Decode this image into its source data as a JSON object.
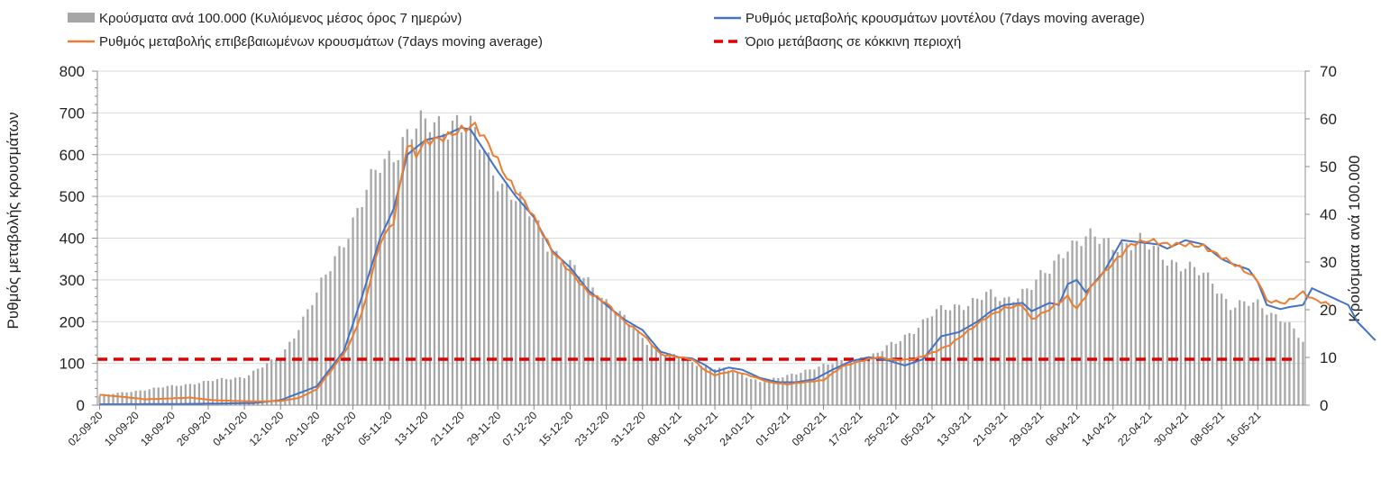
{
  "chart_data": {
    "type": "bar+line",
    "legend": [
      {
        "label": "Κρούσματα ανά 100.000 (Κυλιόμενος μέσος όρος 7 ημερών)",
        "kind": "bar",
        "color": "#a6a6a6"
      },
      {
        "label": "Ρυθμός μεταβολής κρουσμάτων μοντέλου (7days moving average)",
        "kind": "line",
        "color": "#4472c4"
      },
      {
        "label": "Ρυθμός μεταβολής επιβεβαιωμένων κρουσμάτων (7days moving average)",
        "kind": "line",
        "color": "#ed7d31"
      },
      {
        "label": "Όριο μετάβασης σε κόκκινη περιοχή",
        "kind": "dashed",
        "color": "#e00000"
      }
    ],
    "ylabel_left": "Ρυθμός μεταβολής κρουσμάτων",
    "ylabel_right": "Κρούσματα ανά 100.000",
    "ylim_left": [
      0,
      800
    ],
    "ylim_right": [
      0,
      70
    ],
    "yticks_left": [
      "0",
      "100",
      "200",
      "300",
      "400",
      "500",
      "600",
      "700",
      "800"
    ],
    "yticks_right": [
      "0",
      "10",
      "20",
      "30",
      "40",
      "50",
      "60",
      "70"
    ],
    "x_start_date": "2020-09-02",
    "num_days": 267,
    "x_tick_labels": [
      "02-09-20",
      "10-09-20",
      "18-09-20",
      "26-09-20",
      "04-10-20",
      "12-10-20",
      "20-10-20",
      "28-10-20",
      "05-11-20",
      "13-11-20",
      "21-11-20",
      "29-11-20",
      "07-12-20",
      "15-12-20",
      "23-12-20",
      "31-12-20",
      "08-01-21",
      "16-01-21",
      "24-01-21",
      "01-02-21",
      "09-02-21",
      "17-02-21",
      "25-02-21",
      "05-03-21",
      "13-03-21",
      "21-03-21",
      "29-03-21",
      "06-04-21",
      "14-04-21",
      "22-04-21",
      "30-04-21",
      "08-05-21",
      "16-05-21"
    ],
    "threshold": 110,
    "bars_keypoints": [
      [
        0,
        2
      ],
      [
        8,
        3
      ],
      [
        16,
        4
      ],
      [
        24,
        5
      ],
      [
        32,
        6
      ],
      [
        40,
        10
      ],
      [
        48,
        23
      ],
      [
        54,
        35
      ],
      [
        62,
        50
      ],
      [
        68,
        57
      ],
      [
        75,
        59
      ],
      [
        79,
        60
      ],
      [
        83,
        56
      ],
      [
        88,
        48
      ],
      [
        95,
        40
      ],
      [
        100,
        33
      ],
      [
        105,
        28
      ],
      [
        110,
        24
      ],
      [
        116,
        18
      ],
      [
        120,
        14
      ],
      [
        125,
        11
      ],
      [
        130,
        9
      ],
      [
        136,
        8
      ],
      [
        140,
        7
      ],
      [
        146,
        5
      ],
      [
        152,
        6
      ],
      [
        158,
        8
      ],
      [
        164,
        9
      ],
      [
        170,
        10
      ],
      [
        176,
        13
      ],
      [
        184,
        19
      ],
      [
        190,
        21
      ],
      [
        196,
        23
      ],
      [
        200,
        22
      ],
      [
        206,
        25
      ],
      [
        210,
        28
      ],
      [
        214,
        34
      ],
      [
        218,
        35
      ],
      [
        222,
        34
      ],
      [
        226,
        34
      ],
      [
        230,
        34
      ],
      [
        236,
        31
      ],
      [
        242,
        28
      ],
      [
        246,
        26
      ],
      [
        250,
        21
      ],
      [
        256,
        21
      ],
      [
        262,
        18
      ],
      [
        266,
        13
      ]
    ],
    "model_rate_keypoints": [
      [
        0,
        2
      ],
      [
        20,
        3
      ],
      [
        34,
        5
      ],
      [
        40,
        12
      ],
      [
        48,
        45
      ],
      [
        54,
        130
      ],
      [
        58,
        260
      ],
      [
        62,
        400
      ],
      [
        65,
        470
      ],
      [
        68,
        600
      ],
      [
        72,
        635
      ],
      [
        76,
        645
      ],
      [
        80,
        665
      ],
      [
        82,
        660
      ],
      [
        85,
        610
      ],
      [
        88,
        560
      ],
      [
        92,
        500
      ],
      [
        96,
        450
      ],
      [
        100,
        370
      ],
      [
        104,
        330
      ],
      [
        108,
        275
      ],
      [
        112,
        240
      ],
      [
        116,
        205
      ],
      [
        120,
        180
      ],
      [
        124,
        128
      ],
      [
        128,
        115
      ],
      [
        131,
        112
      ],
      [
        134,
        95
      ],
      [
        136,
        80
      ],
      [
        139,
        90
      ],
      [
        142,
        85
      ],
      [
        146,
        65
      ],
      [
        150,
        55
      ],
      [
        154,
        55
      ],
      [
        158,
        62
      ],
      [
        162,
        85
      ],
      [
        166,
        105
      ],
      [
        170,
        115
      ],
      [
        174,
        108
      ],
      [
        178,
        95
      ],
      [
        182,
        110
      ],
      [
        186,
        165
      ],
      [
        190,
        175
      ],
      [
        194,
        200
      ],
      [
        197,
        225
      ],
      [
        200,
        240
      ],
      [
        204,
        245
      ],
      [
        206,
        225
      ],
      [
        210,
        245
      ],
      [
        212,
        240
      ],
      [
        214,
        290
      ],
      [
        216,
        300
      ],
      [
        218,
        270
      ],
      [
        222,
        320
      ],
      [
        226,
        395
      ],
      [
        230,
        390
      ],
      [
        234,
        385
      ],
      [
        236,
        375
      ],
      [
        240,
        395
      ],
      [
        244,
        385
      ],
      [
        248,
        350
      ],
      [
        250,
        340
      ],
      [
        254,
        325
      ],
      [
        256,
        295
      ],
      [
        258,
        240
      ],
      [
        261,
        230
      ],
      [
        263,
        235
      ],
      [
        266,
        240
      ],
      [
        268,
        280
      ],
      [
        272,
        260
      ],
      [
        276,
        240
      ],
      [
        278,
        200
      ],
      [
        282,
        155
      ]
    ],
    "confirmed_rate_keypoints": [
      [
        0,
        25
      ],
      [
        5,
        20
      ],
      [
        10,
        14
      ],
      [
        15,
        16
      ],
      [
        20,
        18
      ],
      [
        25,
        12
      ],
      [
        30,
        10
      ],
      [
        35,
        9
      ],
      [
        40,
        10
      ],
      [
        44,
        17
      ],
      [
        48,
        38
      ],
      [
        52,
        95
      ],
      [
        55,
        140
      ],
      [
        58,
        220
      ],
      [
        62,
        390
      ],
      [
        65,
        440
      ],
      [
        68,
        625
      ],
      [
        70,
        600
      ],
      [
        72,
        630
      ],
      [
        76,
        640
      ],
      [
        80,
        660
      ],
      [
        83,
        670
      ],
      [
        86,
        625
      ],
      [
        90,
        545
      ],
      [
        95,
        470
      ],
      [
        100,
        370
      ],
      [
        104,
        320
      ],
      [
        108,
        270
      ],
      [
        112,
        245
      ],
      [
        116,
        200
      ],
      [
        120,
        170
      ],
      [
        124,
        122
      ],
      [
        128,
        115
      ],
      [
        131,
        110
      ],
      [
        134,
        82
      ],
      [
        136,
        72
      ],
      [
        140,
        82
      ],
      [
        144,
        70
      ],
      [
        148,
        55
      ],
      [
        152,
        50
      ],
      [
        156,
        55
      ],
      [
        160,
        60
      ],
      [
        164,
        92
      ],
      [
        168,
        105
      ],
      [
        172,
        115
      ],
      [
        176,
        108
      ],
      [
        180,
        110
      ],
      [
        184,
        125
      ],
      [
        188,
        145
      ],
      [
        192,
        178
      ],
      [
        196,
        210
      ],
      [
        200,
        232
      ],
      [
        204,
        240
      ],
      [
        206,
        205
      ],
      [
        210,
        230
      ],
      [
        212,
        245
      ],
      [
        214,
        260
      ],
      [
        216,
        230
      ],
      [
        220,
        295
      ],
      [
        224,
        340
      ],
      [
        228,
        385
      ],
      [
        232,
        395
      ],
      [
        236,
        385
      ],
      [
        240,
        385
      ],
      [
        244,
        380
      ],
      [
        248,
        355
      ],
      [
        252,
        330
      ],
      [
        256,
        300
      ],
      [
        258,
        250
      ],
      [
        262,
        245
      ],
      [
        266,
        270
      ],
      [
        268,
        255
      ],
      [
        272,
        240
      ]
    ]
  }
}
